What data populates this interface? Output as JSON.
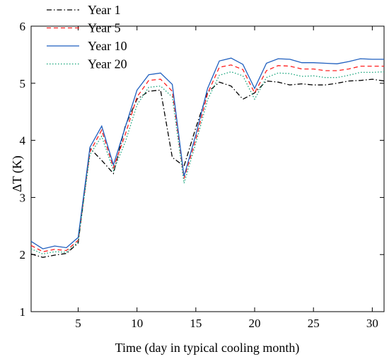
{
  "chart_data": {
    "type": "line",
    "xlabel": "Time (day in typical cooling month)",
    "ylabel": "ΔT (K)",
    "xlim": [
      1,
      31
    ],
    "ylim": [
      1,
      6
    ],
    "x_ticks": [
      5,
      10,
      15,
      20,
      25,
      30
    ],
    "y_ticks": [
      1,
      2,
      3,
      4,
      5,
      6
    ],
    "grid": false,
    "legend_position": "top-left",
    "x": [
      1,
      2,
      3,
      4,
      5,
      6,
      7,
      8,
      9,
      10,
      11,
      12,
      13,
      14,
      15,
      16,
      17,
      18,
      19,
      20,
      21,
      22,
      23,
      24,
      25,
      26,
      27,
      28,
      29,
      30,
      31
    ],
    "series": [
      {
        "name": "Year 1",
        "color": "#000000",
        "dash": "dashdot",
        "values": [
          2.01,
          1.95,
          1.99,
          2.02,
          2.2,
          3.86,
          3.65,
          3.42,
          4.25,
          4.72,
          4.86,
          4.88,
          3.7,
          3.55,
          4.22,
          4.84,
          5.02,
          4.95,
          4.72,
          4.83,
          5.04,
          5.02,
          4.97,
          4.99,
          4.97,
          4.97,
          5.0,
          5.04,
          5.05,
          5.07,
          5.04
        ]
      },
      {
        "name": "Year 5",
        "color": "#ff2020",
        "dash": "dashed",
        "values": [
          2.16,
          2.05,
          2.09,
          2.07,
          2.25,
          3.8,
          4.18,
          3.52,
          4.1,
          4.76,
          5.05,
          5.07,
          4.86,
          3.33,
          4.02,
          4.82,
          5.28,
          5.32,
          5.24,
          4.83,
          5.22,
          5.31,
          5.3,
          5.25,
          5.25,
          5.22,
          5.22,
          5.25,
          5.3,
          5.3,
          5.3
        ]
      },
      {
        "name": "Year 10",
        "color": "#1f5fbf",
        "dash": "solid",
        "values": [
          2.23,
          2.1,
          2.15,
          2.12,
          2.3,
          3.88,
          4.25,
          3.57,
          4.23,
          4.88,
          5.15,
          5.18,
          4.98,
          3.37,
          4.1,
          4.91,
          5.39,
          5.44,
          5.33,
          4.91,
          5.35,
          5.43,
          5.42,
          5.36,
          5.36,
          5.35,
          5.34,
          5.38,
          5.43,
          5.42,
          5.42
        ]
      },
      {
        "name": "Year 20",
        "color": "#15a37a",
        "dash": "dotted",
        "values": [
          2.1,
          2.01,
          2.05,
          2.04,
          2.22,
          3.75,
          4.07,
          3.47,
          3.97,
          4.62,
          4.93,
          4.95,
          4.76,
          3.25,
          3.95,
          4.71,
          5.14,
          5.2,
          5.13,
          4.72,
          5.1,
          5.18,
          5.17,
          5.12,
          5.13,
          5.1,
          5.1,
          5.14,
          5.19,
          5.19,
          5.2
        ]
      }
    ]
  }
}
